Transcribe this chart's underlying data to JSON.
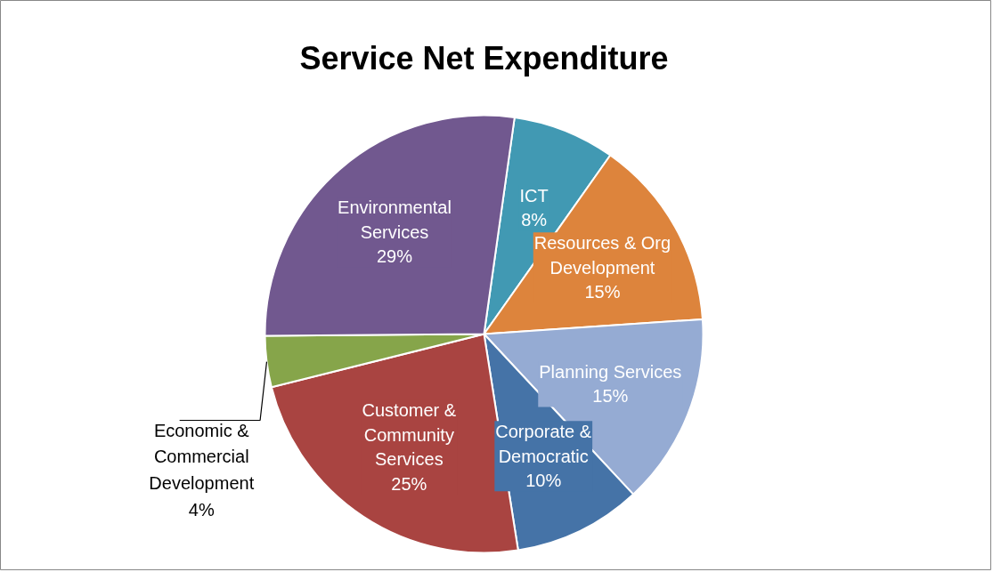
{
  "chart_data": {
    "type": "pie",
    "title": "Service Net Expenditure",
    "categories": [
      "ICT",
      "Resources & Org\nDevelopment",
      "Planning Services",
      "Corporate &\nDemocratic",
      "Customer &\nCommunity\nServices",
      "Economic &\nCommercial\nDevelopment",
      "Environmental\nServices"
    ],
    "values": [
      8,
      15,
      15,
      10,
      25,
      4,
      29
    ],
    "colors": [
      "#4199b3",
      "#dd843c",
      "#95abd3",
      "#4573a7",
      "#a94441",
      "#86a54a",
      "#71588f"
    ],
    "value_labels": [
      "8%",
      "15%",
      "15%",
      "10%",
      "25%",
      "4%",
      "29%"
    ]
  }
}
